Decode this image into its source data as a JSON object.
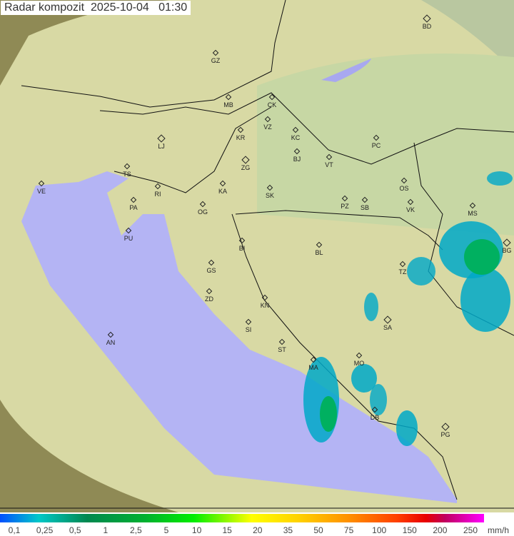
{
  "title": "Radar kompozit  2025-10-04   01:30",
  "cities": [
    {
      "code": "GZ"
    },
    {
      "code": "BD",
      "capital": true
    },
    {
      "code": "MB"
    },
    {
      "code": "CK"
    },
    {
      "code": "VZ"
    },
    {
      "code": "KR"
    },
    {
      "code": "KC"
    },
    {
      "code": "LJ",
      "capital": true
    },
    {
      "code": "BJ"
    },
    {
      "code": "PC"
    },
    {
      "code": "ZG",
      "capital": true
    },
    {
      "code": "VT"
    },
    {
      "code": "TS"
    },
    {
      "code": "VE"
    },
    {
      "code": "RI"
    },
    {
      "code": "KA"
    },
    {
      "code": "SK"
    },
    {
      "code": "OS"
    },
    {
      "code": "PA"
    },
    {
      "code": "OG"
    },
    {
      "code": "PZ"
    },
    {
      "code": "SB"
    },
    {
      "code": "VK"
    },
    {
      "code": "MS"
    },
    {
      "code": "PU"
    },
    {
      "code": "BI"
    },
    {
      "code": "BL"
    },
    {
      "code": "BG",
      "capital": true
    },
    {
      "code": "TZ"
    },
    {
      "code": "GS"
    },
    {
      "code": "ZD"
    },
    {
      "code": "KN"
    },
    {
      "code": "SA",
      "capital": true
    },
    {
      "code": "SI"
    },
    {
      "code": "AN"
    },
    {
      "code": "ST"
    },
    {
      "code": "MA"
    },
    {
      "code": "MO"
    },
    {
      "code": "DB"
    },
    {
      "code": "PG",
      "capital": true
    }
  ],
  "legend": {
    "ticks": [
      "0,1",
      "0,25",
      "0,5",
      "1",
      "2,5",
      "5",
      "10",
      "15",
      "20",
      "35",
      "50",
      "75",
      "100",
      "150",
      "200",
      "250"
    ],
    "unit": "mm/h"
  },
  "colors": {
    "land": "#d9dca0",
    "sea": "#b4b4f4",
    "outside": "#a09a60",
    "radar_low": "#00a8c8",
    "radar_mid": "#00b060"
  }
}
